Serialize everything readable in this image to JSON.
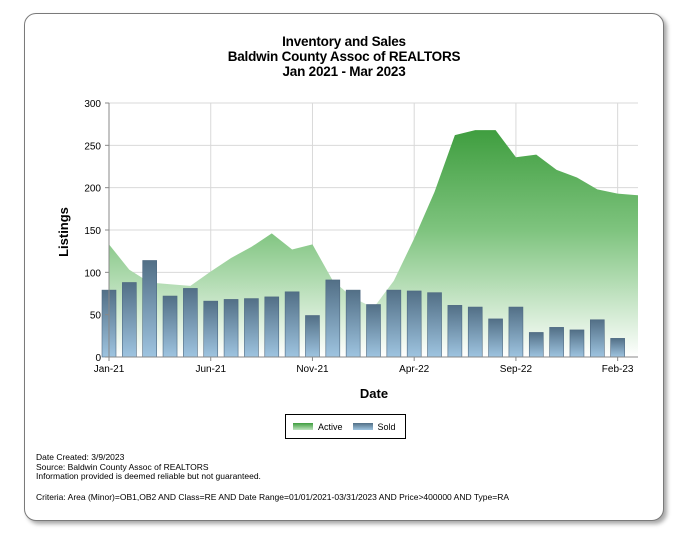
{
  "titles": {
    "line1": "Inventory and Sales",
    "line2": "Baldwin County Assoc of REALTORS",
    "line3": "Jan 2021 - Mar 2023"
  },
  "chart_data": {
    "type": "area",
    "title": "Inventory and Sales",
    "xlabel": "Date",
    "ylabel": "Listings",
    "ylim": [
      0,
      300
    ],
    "yticks": [
      0,
      50,
      100,
      150,
      200,
      250,
      300
    ],
    "x": [
      "Jan-21",
      "Feb-21",
      "Mar-21",
      "Apr-21",
      "May-21",
      "Jun-21",
      "Jul-21",
      "Aug-21",
      "Sep-21",
      "Oct-21",
      "Nov-21",
      "Dec-21",
      "Jan-22",
      "Feb-22",
      "Mar-22",
      "Apr-22",
      "May-22",
      "Jun-22",
      "Jul-22",
      "Aug-22",
      "Sep-22",
      "Oct-22",
      "Nov-22",
      "Dec-22",
      "Jan-23",
      "Feb-23",
      "Mar-23"
    ],
    "xtick_labels": [
      "Jan-21",
      "Jun-21",
      "Nov-21",
      "Apr-22",
      "Sep-22",
      "Feb-23"
    ],
    "series": [
      {
        "name": "Active",
        "type": "area",
        "color": "#3f9e3f",
        "values": [
          133,
          103,
          88,
          86,
          84,
          101,
          117,
          130,
          146,
          127,
          133,
          90,
          70,
          58,
          90,
          140,
          195,
          262,
          268,
          268,
          236,
          239,
          221,
          212,
          198,
          193,
          191
        ]
      },
      {
        "name": "Sold",
        "type": "bar",
        "color": "#5b87a8",
        "values": [
          79,
          88,
          114,
          72,
          81,
          66,
          68,
          69,
          71,
          77,
          49,
          91,
          79,
          62,
          79,
          78,
          76,
          61,
          59,
          45,
          59,
          29,
          35,
          32,
          44,
          22,
          0
        ]
      }
    ],
    "grid": true,
    "legend_position": "bottom-center"
  },
  "notes": {
    "line1": "Date Created: 3/9/2023",
    "line2": "Source: Baldwin County Assoc of REALTORS",
    "line3": "Information provided is deemed reliable but not guaranteed."
  },
  "criteria": "Criteria: Area (Minor)=OB1,OB2 AND Class=RE AND Date Range=01/01/2021-03/31/2023 AND Price>400000 AND Type=RA"
}
